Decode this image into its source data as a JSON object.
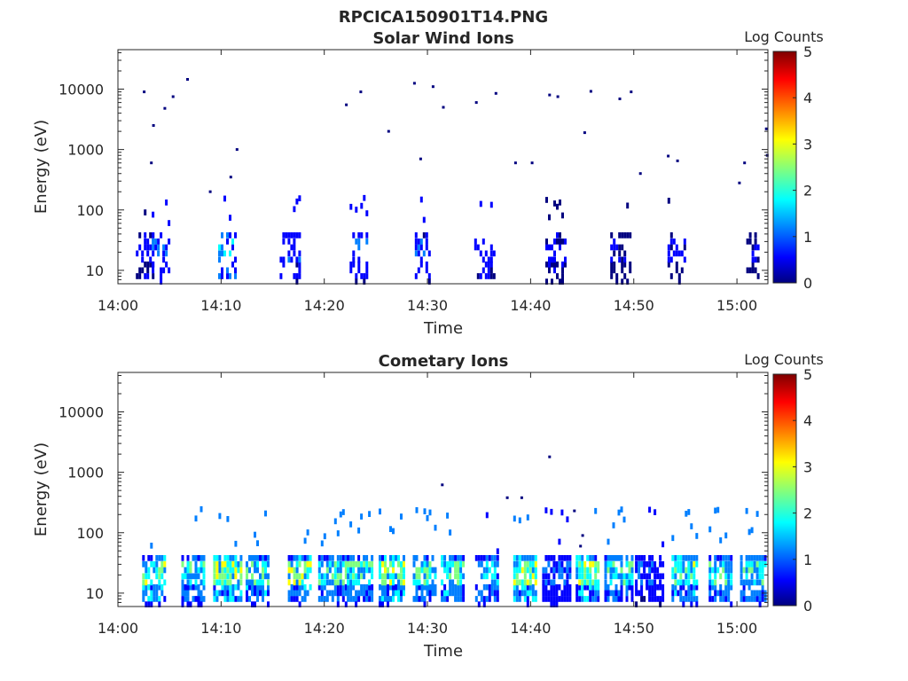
{
  "figure": {
    "filename": "RPCICA150901T14.PNG"
  },
  "colorscale": [
    "#00007f",
    "#0000ff",
    "#007fff",
    "#00ffff",
    "#7fff7f",
    "#ffff00",
    "#ff7f00",
    "#ff0000",
    "#7f0000"
  ],
  "chart_data": [
    {
      "type": "heatmap",
      "title": "Solar Wind Ions",
      "xlabel": "Time",
      "ylabel": "Energy (eV)",
      "yscale": "log",
      "ylim": [
        6,
        45000
      ],
      "xlim": [
        "14:00",
        "15:03"
      ],
      "xticks": [
        "14:00",
        "14:10",
        "14:20",
        "14:30",
        "14:40",
        "14:50",
        "15:00"
      ],
      "yticks": [
        "10",
        "100",
        "1000",
        "10000"
      ],
      "colorbar": {
        "label": "Log Counts",
        "range": [
          0,
          5
        ],
        "ticks": [
          "0",
          "1",
          "2",
          "3",
          "4",
          "5"
        ]
      },
      "bursts": [
        {
          "time_min": 2.7,
          "level": 0.5
        },
        {
          "time_min": 4.2,
          "level": 1.2
        },
        {
          "time_min": 10.6,
          "level": 1.5
        },
        {
          "time_min": 16.7,
          "level": 1.0
        },
        {
          "time_min": 23.3,
          "level": 1.0
        },
        {
          "time_min": 29.5,
          "level": 0.8
        },
        {
          "time_min": 35.5,
          "level": 0.7
        },
        {
          "time_min": 42.4,
          "level": 0.5
        },
        {
          "time_min": 48.8,
          "level": 0.4
        },
        {
          "time_min": 54.2,
          "level": 0.4
        },
        {
          "time_min": 61.6,
          "level": 0.4
        }
      ],
      "scatter_points": [
        {
          "time_min": 2.5,
          "energy_ev": 9000
        },
        {
          "time_min": 6.7,
          "energy_ev": 14500
        },
        {
          "time_min": 5.3,
          "energy_ev": 7500
        },
        {
          "time_min": 3.4,
          "energy_ev": 2500
        },
        {
          "time_min": 4.5,
          "energy_ev": 4800
        },
        {
          "time_min": 3.2,
          "energy_ev": 600
        },
        {
          "time_min": 8.9,
          "energy_ev": 200
        },
        {
          "time_min": 11.5,
          "energy_ev": 1000
        },
        {
          "time_min": 10.9,
          "energy_ev": 350
        },
        {
          "time_min": 22.1,
          "energy_ev": 5500
        },
        {
          "time_min": 23.5,
          "energy_ev": 9000
        },
        {
          "time_min": 26.2,
          "energy_ev": 2000
        },
        {
          "time_min": 28.7,
          "energy_ev": 12500
        },
        {
          "time_min": 30.5,
          "energy_ev": 11000
        },
        {
          "time_min": 29.3,
          "energy_ev": 700
        },
        {
          "time_min": 31.5,
          "energy_ev": 5000
        },
        {
          "time_min": 34.7,
          "energy_ev": 6000
        },
        {
          "time_min": 36.6,
          "energy_ev": 8500
        },
        {
          "time_min": 38.5,
          "energy_ev": 600
        },
        {
          "time_min": 40.1,
          "energy_ev": 600
        },
        {
          "time_min": 41.8,
          "energy_ev": 8000
        },
        {
          "time_min": 42.6,
          "energy_ev": 7500
        },
        {
          "time_min": 45.8,
          "energy_ev": 9200
        },
        {
          "time_min": 45.2,
          "energy_ev": 1900
        },
        {
          "time_min": 48.6,
          "energy_ev": 6900
        },
        {
          "time_min": 49.7,
          "energy_ev": 9000
        },
        {
          "time_min": 50.6,
          "energy_ev": 400
        },
        {
          "time_min": 53.3,
          "energy_ev": 780
        },
        {
          "time_min": 54.2,
          "energy_ev": 650
        },
        {
          "time_min": 60.2,
          "energy_ev": 280
        },
        {
          "time_min": 60.7,
          "energy_ev": 600
        },
        {
          "time_min": 62.8,
          "energy_ev": 2200
        },
        {
          "time_min": 62.9,
          "energy_ev": 800
        }
      ]
    },
    {
      "type": "heatmap",
      "title": "Cometary Ions",
      "xlabel": "Time",
      "ylabel": "Energy (eV)",
      "yscale": "log",
      "ylim": [
        6,
        45000
      ],
      "xlim": [
        "14:00",
        "15:03"
      ],
      "xticks": [
        "14:00",
        "14:10",
        "14:20",
        "14:30",
        "14:40",
        "14:50",
        "15:00"
      ],
      "yticks": [
        "10",
        "100",
        "1000",
        "10000"
      ],
      "colorbar": {
        "label": "Log Counts",
        "range": [
          0,
          5
        ],
        "ticks": [
          "0",
          "1",
          "2",
          "3",
          "4",
          "5"
        ]
      },
      "bursts": [
        {
          "time_min": 3.5,
          "level": 2.3
        },
        {
          "time_min": 7.3,
          "level": 1.9
        },
        {
          "time_min": 10.6,
          "level": 2.6
        },
        {
          "time_min": 13.5,
          "level": 2.1
        },
        {
          "time_min": 17.6,
          "level": 2.4
        },
        {
          "time_min": 20.8,
          "level": 2.0
        },
        {
          "time_min": 23.5,
          "level": 2.0
        },
        {
          "time_min": 26.6,
          "level": 2.3
        },
        {
          "time_min": 29.7,
          "level": 2.0
        },
        {
          "time_min": 32.5,
          "level": 2.1
        },
        {
          "time_min": 35.8,
          "level": 1.6
        },
        {
          "time_min": 39.5,
          "level": 2.5
        },
        {
          "time_min": 42.5,
          "level": 1.2
        },
        {
          "time_min": 45.5,
          "level": 2.3
        },
        {
          "time_min": 48.5,
          "level": 2.0
        },
        {
          "time_min": 51.5,
          "level": 0.9
        },
        {
          "time_min": 55.0,
          "level": 2.2
        },
        {
          "time_min": 58.4,
          "level": 2.0
        },
        {
          "time_min": 61.6,
          "level": 1.9
        }
      ],
      "scatter_points": [
        {
          "time_min": 31.4,
          "energy_ev": 620
        },
        {
          "time_min": 37.7,
          "energy_ev": 380
        },
        {
          "time_min": 39.1,
          "energy_ev": 380
        },
        {
          "time_min": 41.8,
          "energy_ev": 1800
        },
        {
          "time_min": 44.2,
          "energy_ev": 230
        },
        {
          "time_min": 45.0,
          "energy_ev": 90
        },
        {
          "time_min": 44.8,
          "energy_ev": 60
        }
      ]
    }
  ]
}
